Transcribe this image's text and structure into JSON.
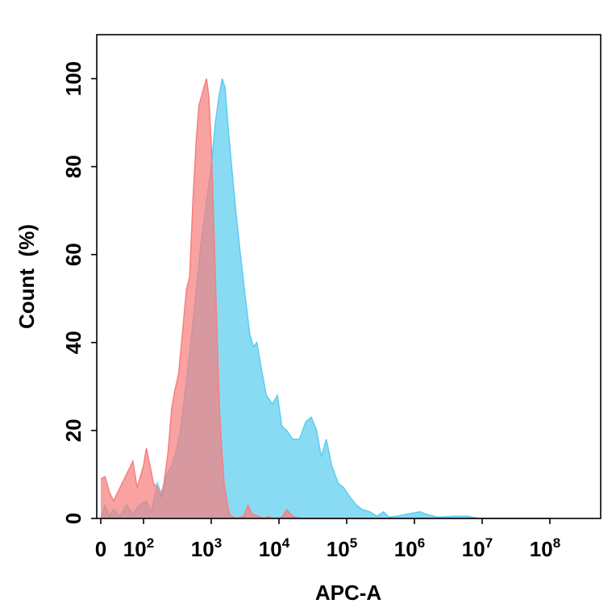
{
  "chart_data": {
    "type": "area",
    "title": "",
    "xlabel": "APC-A",
    "ylabel": "Count  (%)",
    "x_scale": "log",
    "xlim": [
      0,
      100000000
    ],
    "ylim": [
      0,
      110
    ],
    "grid": false,
    "x_ticks": [
      {
        "value": 0,
        "label": "0",
        "sup": ""
      },
      {
        "value": 100,
        "label": "10",
        "sup": "2"
      },
      {
        "value": 1000,
        "label": "10",
        "sup": "3"
      },
      {
        "value": 10000,
        "label": "10",
        "sup": "4"
      },
      {
        "value": 100000,
        "label": "10",
        "sup": "5"
      },
      {
        "value": 1000000,
        "label": "10",
        "sup": "6"
      },
      {
        "value": 10000000,
        "label": "10",
        "sup": "7"
      },
      {
        "value": 100000000,
        "label": "10",
        "sup": "8"
      }
    ],
    "y_ticks": [
      0,
      20,
      40,
      60,
      80,
      100
    ],
    "series": [
      {
        "color": "#5bcdf0",
        "points": [
          [
            0,
            0
          ],
          [
            10,
            3
          ],
          [
            20,
            0.5
          ],
          [
            30,
            2
          ],
          [
            45,
            0.5
          ],
          [
            60,
            3
          ],
          [
            75,
            1
          ],
          [
            90,
            3
          ],
          [
            110,
            4
          ],
          [
            130,
            1.5
          ],
          [
            160,
            8
          ],
          [
            190,
            5
          ],
          [
            220,
            10
          ],
          [
            260,
            12
          ],
          [
            300,
            15
          ],
          [
            350,
            20
          ],
          [
            420,
            30
          ],
          [
            500,
            40
          ],
          [
            600,
            52
          ],
          [
            700,
            62
          ],
          [
            850,
            72
          ],
          [
            1000,
            80
          ],
          [
            1150,
            90
          ],
          [
            1300,
            96
          ],
          [
            1450,
            100
          ],
          [
            1600,
            98
          ],
          [
            1800,
            88
          ],
          [
            2000,
            80
          ],
          [
            2300,
            70
          ],
          [
            2700,
            60
          ],
          [
            3200,
            50
          ],
          [
            3700,
            42
          ],
          [
            4200,
            39
          ],
          [
            4700,
            40
          ],
          [
            5500,
            34
          ],
          [
            6500,
            28
          ],
          [
            8000,
            26
          ],
          [
            9500,
            28
          ],
          [
            11000,
            21
          ],
          [
            13000,
            20
          ],
          [
            16000,
            18
          ],
          [
            20000,
            18
          ],
          [
            25000,
            22
          ],
          [
            30000,
            23
          ],
          [
            36000,
            20
          ],
          [
            42000,
            14
          ],
          [
            50000,
            18
          ],
          [
            60000,
            12
          ],
          [
            75000,
            8
          ],
          [
            90000,
            7
          ],
          [
            110000,
            5
          ],
          [
            140000,
            3
          ],
          [
            170000,
            2
          ],
          [
            220000,
            1.5
          ],
          [
            280000,
            0.5
          ],
          [
            350000,
            1.5
          ],
          [
            420000,
            0.3
          ],
          [
            550000,
            0.5
          ],
          [
            800000,
            1
          ],
          [
            1200000,
            1.5
          ],
          [
            1600000,
            0.8
          ],
          [
            2200000,
            0.3
          ],
          [
            4000000,
            0.5
          ],
          [
            6000000,
            0.5
          ],
          [
            9000000,
            0
          ],
          [
            100000000,
            0
          ]
        ]
      },
      {
        "color": "#f77e7e",
        "points": [
          [
            0,
            9
          ],
          [
            10,
            9.5
          ],
          [
            20,
            6
          ],
          [
            30,
            4
          ],
          [
            45,
            7
          ],
          [
            60,
            10
          ],
          [
            75,
            13
          ],
          [
            85,
            7
          ],
          [
            100,
            12
          ],
          [
            110,
            16
          ],
          [
            125,
            12
          ],
          [
            140,
            8
          ],
          [
            160,
            7
          ],
          [
            180,
            5
          ],
          [
            200,
            8
          ],
          [
            230,
            15
          ],
          [
            260,
            25
          ],
          [
            290,
            29
          ],
          [
            330,
            33
          ],
          [
            380,
            43
          ],
          [
            430,
            52
          ],
          [
            480,
            55
          ],
          [
            540,
            73
          ],
          [
            600,
            86
          ],
          [
            660,
            94
          ],
          [
            720,
            96
          ],
          [
            780,
            98
          ],
          [
            850,
            100
          ],
          [
            920,
            96
          ],
          [
            1000,
            85
          ],
          [
            1100,
            65
          ],
          [
            1200,
            45
          ],
          [
            1320,
            25
          ],
          [
            1440,
            15
          ],
          [
            1550,
            8
          ],
          [
            1700,
            4
          ],
          [
            1850,
            1
          ],
          [
            2000,
            0.5
          ],
          [
            2400,
            0
          ],
          [
            3000,
            0.5
          ],
          [
            3500,
            3
          ],
          [
            4000,
            1
          ],
          [
            5000,
            0.5
          ],
          [
            6000,
            0
          ],
          [
            7000,
            0.5
          ],
          [
            8000,
            0
          ],
          [
            11000,
            0.2
          ],
          [
            13000,
            2
          ],
          [
            16000,
            0.5
          ],
          [
            20000,
            0
          ],
          [
            100000000,
            0
          ]
        ]
      }
    ]
  }
}
